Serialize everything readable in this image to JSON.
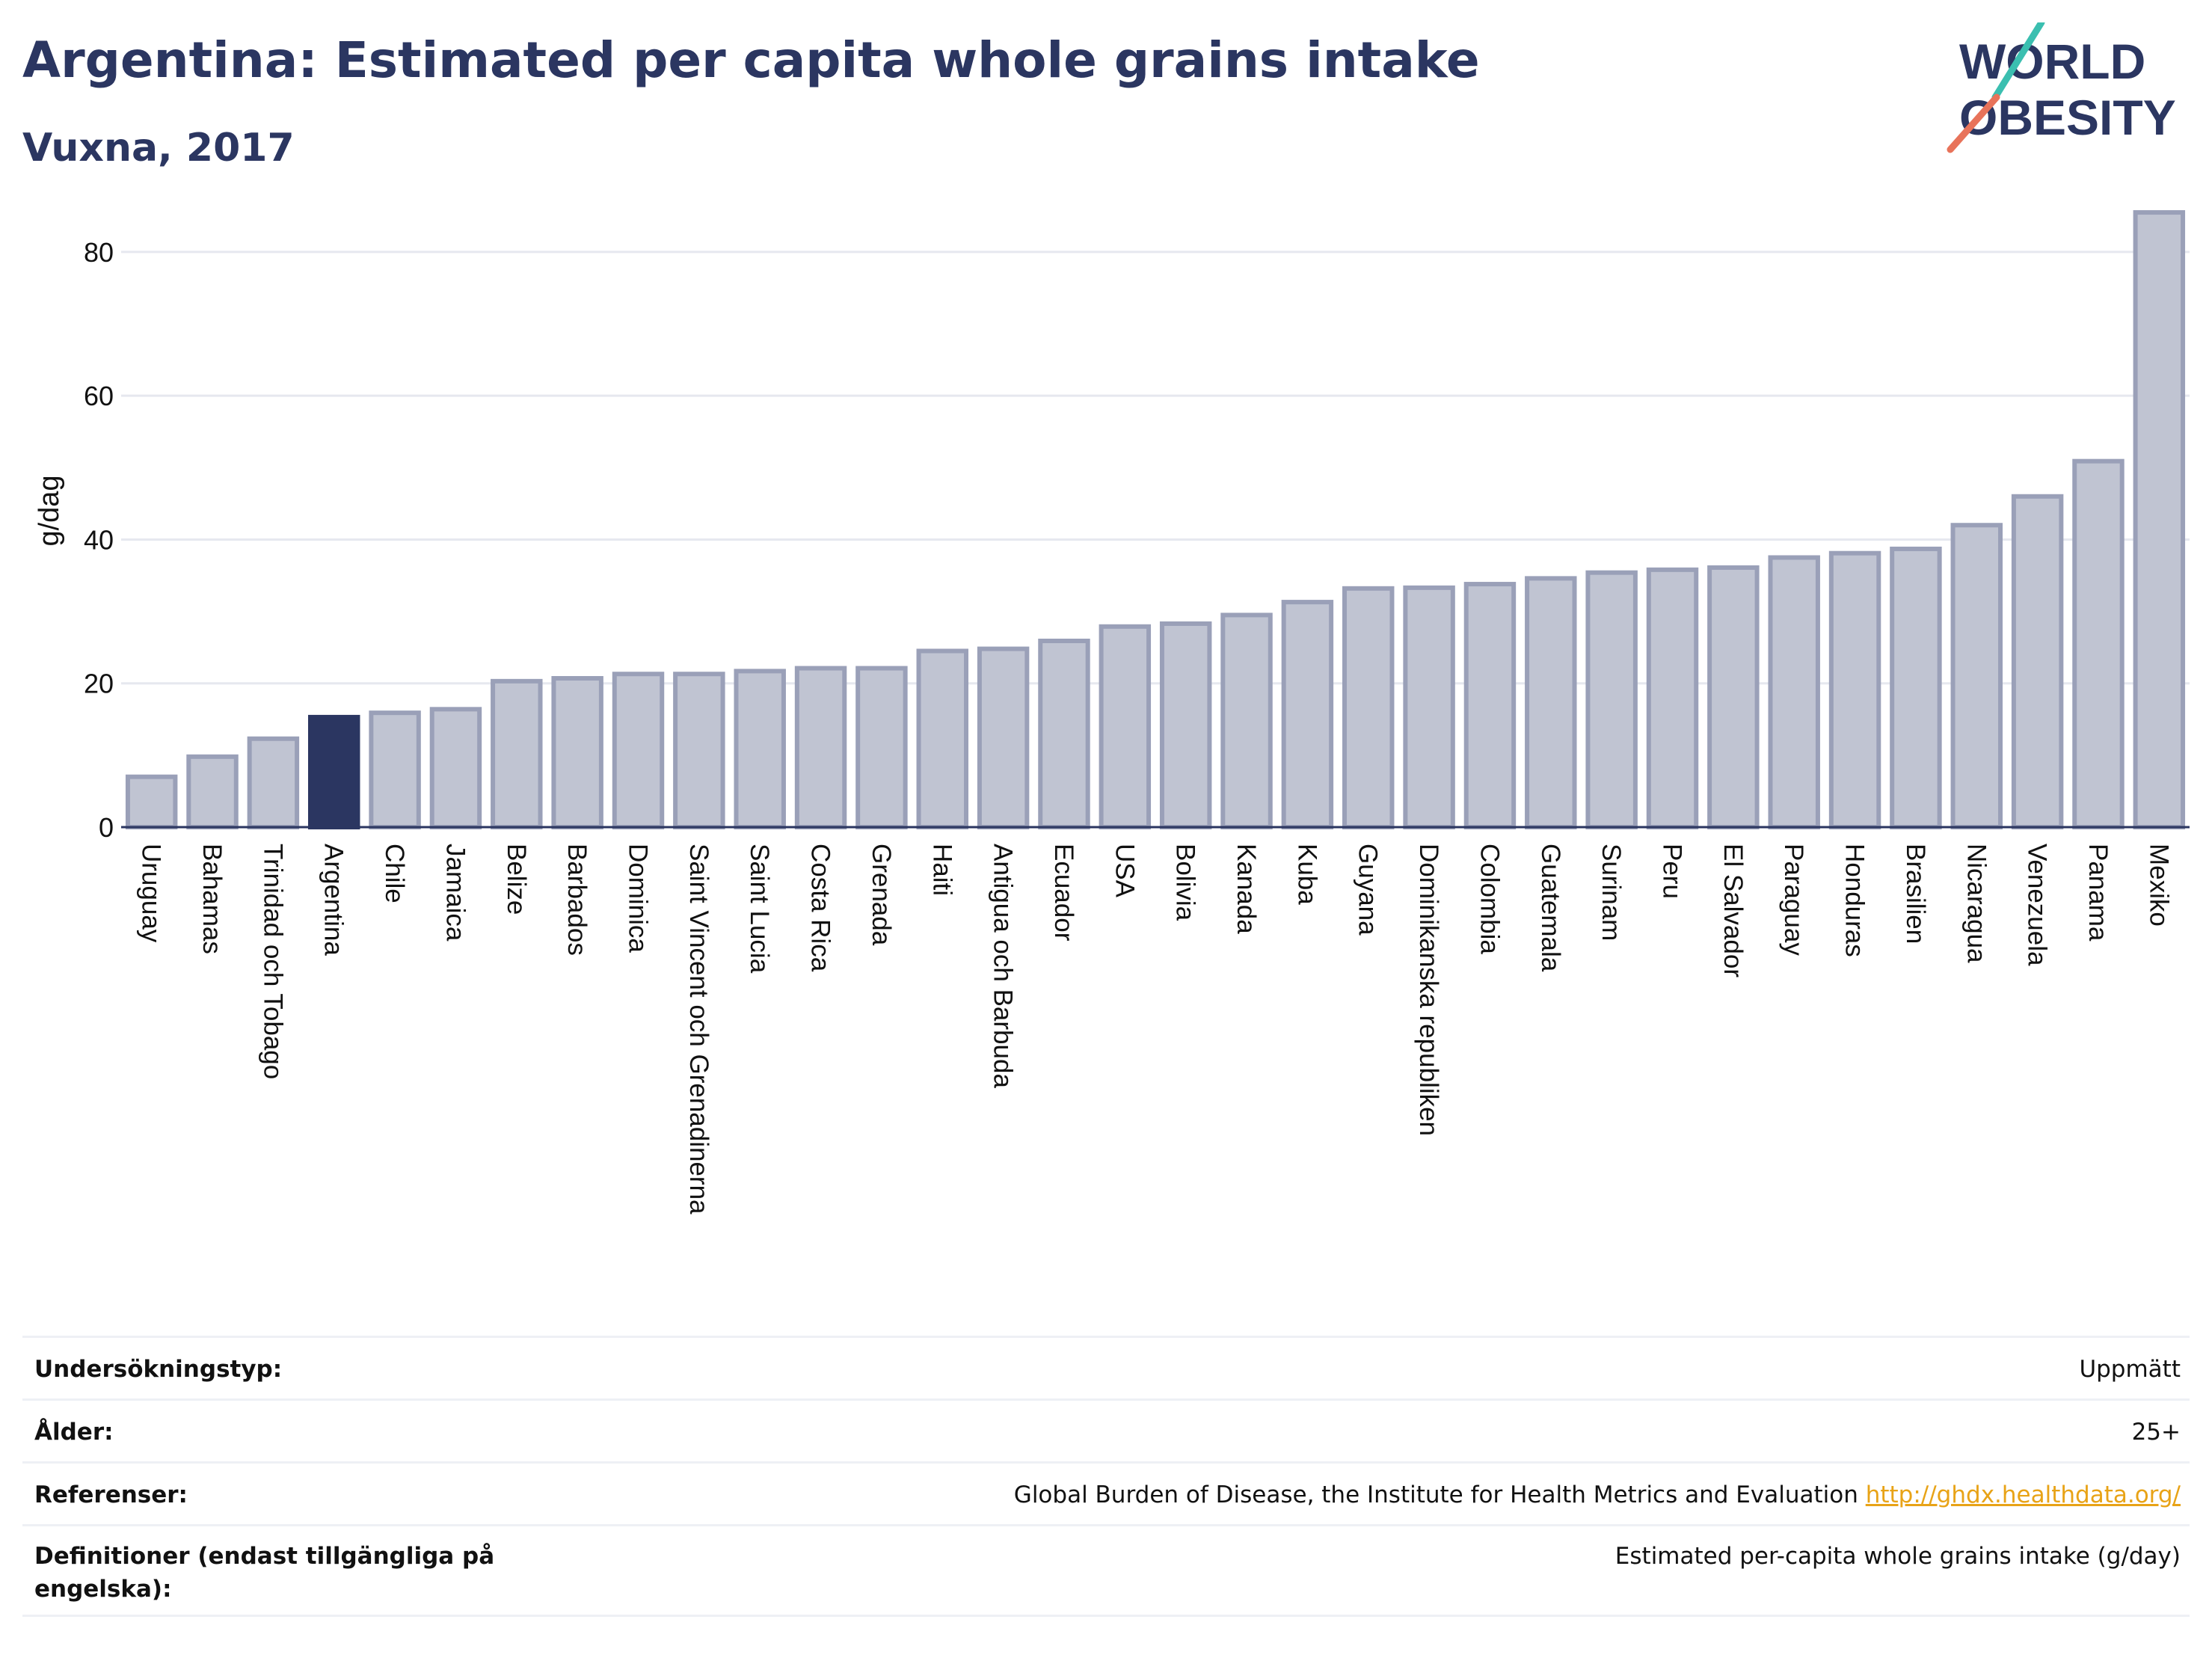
{
  "header": {
    "title": "Argentina: Estimated per capita whole grains intake",
    "subtitle": "Vuxna, 2017",
    "logo_line1": "WORLD",
    "logo_line2": "OBESITY"
  },
  "colors": {
    "highlight": "#2b3661",
    "bar_fill": "#c0c4d2",
    "bar_stroke": "#9aa0b8",
    "text": "#2b3661",
    "link": "#e8a317",
    "logo_teal": "#3bbfb0",
    "logo_coral": "#e8735a"
  },
  "chart_data": {
    "type": "bar",
    "title": "Argentina: Estimated per capita whole grains intake",
    "subtitle": "Vuxna, 2017",
    "ylabel": "g/dag",
    "xlabel": "",
    "ylim": [
      0,
      88
    ],
    "yticks": [
      0,
      20,
      40,
      60,
      80
    ],
    "grid": true,
    "highlight": "Argentina",
    "categories": [
      "Uruguay",
      "Bahamas",
      "Trinidad och Tobago",
      "Argentina",
      "Chile",
      "Jamaica",
      "Belize",
      "Barbados",
      "Dominica",
      "Saint Vincent och Grenadinerna",
      "Saint Lucia",
      "Costa Rica",
      "Grenada",
      "Haiti",
      "Antigua och Barbuda",
      "Ecuador",
      "USA",
      "Bolivia",
      "Kanada",
      "Kuba",
      "Guyana",
      "Dominikanska republiken",
      "Colombia",
      "Guatemala",
      "Surinam",
      "Peru",
      "El Salvador",
      "Paraguay",
      "Honduras",
      "Brasilien",
      "Nicaragua",
      "Venezuela",
      "Panama",
      "Mexiko"
    ],
    "values": [
      7.0,
      9.8,
      12.3,
      15.3,
      15.9,
      16.4,
      20.3,
      20.7,
      21.3,
      21.3,
      21.7,
      22.1,
      22.1,
      24.5,
      24.8,
      25.9,
      27.9,
      28.3,
      29.5,
      31.3,
      33.2,
      33.3,
      33.8,
      34.6,
      35.4,
      35.8,
      36.1,
      37.5,
      38.1,
      38.7,
      42.0,
      46.0,
      50.9,
      85.5
    ]
  },
  "info": [
    {
      "label": "Undersökningstyp:",
      "value": "Uppmätt"
    },
    {
      "label": "Ålder:",
      "value": "25+"
    },
    {
      "label": "Referenser:",
      "value": "Global Burden of Disease, the Institute for Health Metrics and Evaluation",
      "link": "http://ghdx.healthdata.org/"
    },
    {
      "label": "Definitioner (endast tillgängliga på engelska):",
      "value": "Estimated per-capita whole grains intake (g/day)"
    }
  ]
}
